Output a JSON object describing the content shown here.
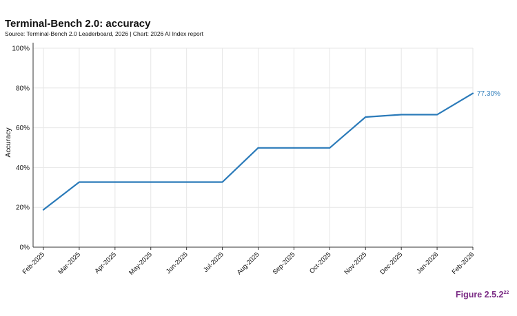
{
  "header": {
    "title": "Terminal-Bench 2.0: accuracy",
    "source": "Source: Terminal-Bench 2.0 Leaderboard, 2026 | Chart: 2026 AI Index report"
  },
  "figure": {
    "label": "Figure 2.5.2",
    "footnote": "22",
    "color": "#7a2a84"
  },
  "chart_data": {
    "type": "line",
    "title": "Terminal-Bench 2.0: accuracy",
    "xlabel": "",
    "ylabel": "Accuracy",
    "ylim": [
      0,
      100
    ],
    "yticks": [
      "0%",
      "20%",
      "40%",
      "60%",
      "80%",
      "100%"
    ],
    "categories": [
      "Feb-2025",
      "Mar-2025",
      "Apr-2025",
      "May-2025",
      "Jun-2025",
      "Jul-2025",
      "Aug-2025",
      "Sep-2025",
      "Oct-2025",
      "Nov-2025",
      "Dec-2025",
      "Jan-2026",
      "Feb-2026"
    ],
    "series": [
      {
        "values": [
          18.8,
          32.7,
          32.7,
          32.7,
          32.7,
          32.7,
          49.9,
          49.9,
          49.9,
          65.4,
          66.6,
          66.6,
          77.3
        ]
      }
    ],
    "end_label": "77.30%",
    "line_color": "#2a7ab9",
    "grid": true
  }
}
